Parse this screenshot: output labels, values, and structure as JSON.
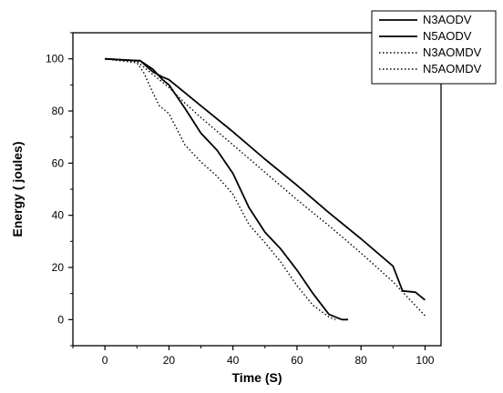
{
  "chart_data": {
    "type": "line",
    "title": "",
    "xlabel": "Time (S)",
    "ylabel": "Energy ( joules)",
    "xlim": [
      -10,
      105
    ],
    "ylim": [
      -10,
      110
    ],
    "xticks": [
      0,
      20,
      40,
      60,
      80,
      100
    ],
    "yticks": [
      0,
      20,
      40,
      60,
      80,
      100
    ],
    "grid": false,
    "legend_position": "top-right",
    "series": [
      {
        "name": "N3AODV",
        "style": "solid",
        "color": "#000000",
        "x": [
          0,
          10,
          11,
          15,
          18,
          20,
          30,
          40,
          50,
          60,
          70,
          80,
          90,
          93,
          97,
          100
        ],
        "y": [
          100,
          99.3,
          99.3,
          95,
          93,
          92,
          82,
          72,
          61.5,
          51.5,
          41,
          31,
          20.5,
          11,
          10.5,
          7.5
        ]
      },
      {
        "name": "N5AODV",
        "style": "solid",
        "color": "#000000",
        "x": [
          0,
          10,
          11,
          15,
          18,
          20,
          25,
          30,
          35,
          40,
          45,
          50,
          55,
          60,
          65,
          70,
          74,
          76
        ],
        "y": [
          100,
          99.3,
          99.3,
          96,
          92,
          90,
          81,
          71.5,
          65,
          56,
          43,
          33.5,
          27,
          19,
          10,
          2,
          0,
          0
        ]
      },
      {
        "name": "N3AOMDV",
        "style": "dotted",
        "color": "#000000",
        "x": [
          0,
          10,
          12,
          15,
          18,
          20,
          25,
          30,
          40,
          50,
          60,
          70,
          80,
          90,
          100
        ],
        "y": [
          100,
          99,
          97,
          94,
          91,
          89,
          83,
          77.5,
          67,
          56.5,
          46,
          36,
          25.5,
          14.5,
          1.5
        ]
      },
      {
        "name": "N5AOMDV",
        "style": "dotted",
        "color": "#000000",
        "x": [
          0,
          10,
          12,
          15,
          17,
          20,
          25,
          30,
          35,
          40,
          45,
          50,
          55,
          60,
          65,
          70,
          72
        ],
        "y": [
          100,
          98.5,
          95,
          87,
          82,
          79,
          67,
          60.5,
          55,
          48,
          36.5,
          29.5,
          22,
          13,
          5.5,
          1,
          0
        ]
      }
    ]
  }
}
